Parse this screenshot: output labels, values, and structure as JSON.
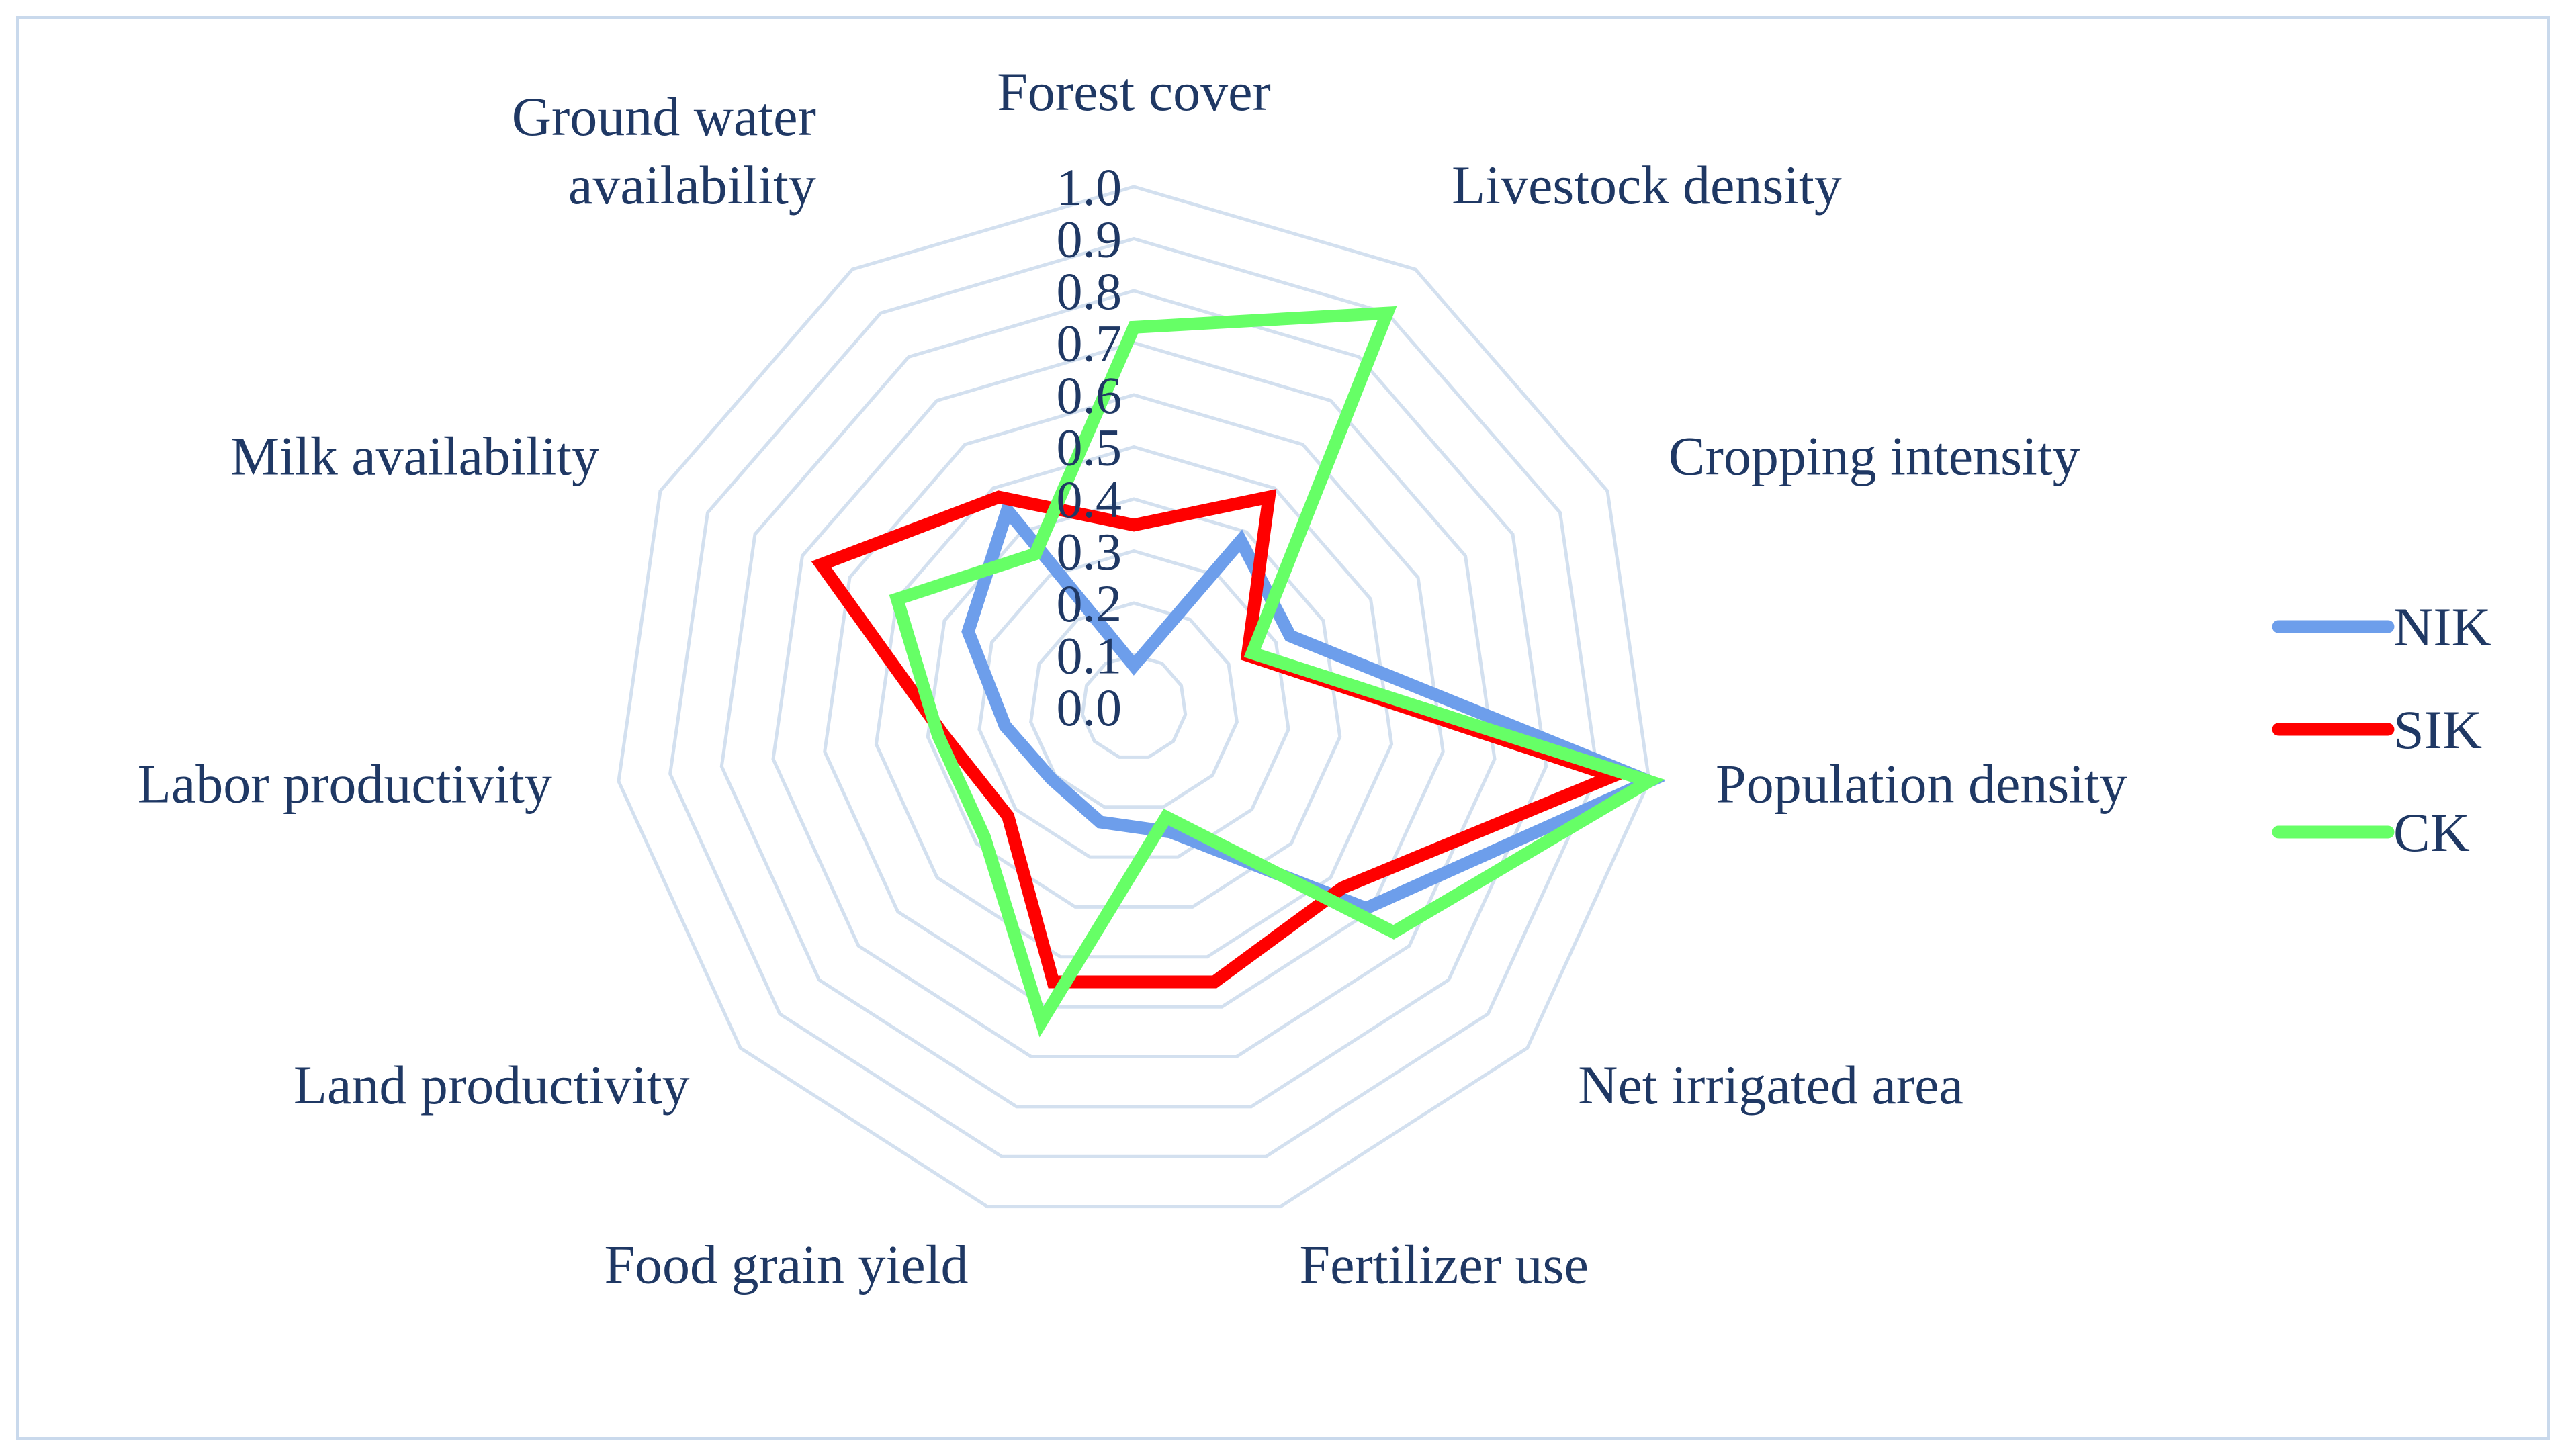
{
  "chart_data": {
    "type": "radar",
    "categories": [
      "Forest cover",
      "Livestock density",
      "Cropping intensity",
      "Population density",
      "Net irrigated area",
      "Fertilizer use",
      "Food grain yield",
      "Land productivity",
      "Labor productivity",
      "Milk availability",
      "Ground water availability"
    ],
    "category_lines": [
      [
        "Forest cover"
      ],
      [
        "Livestock density"
      ],
      [
        "Cropping intensity"
      ],
      [
        "Population density"
      ],
      [
        "Net irrigated area"
      ],
      [
        "Fertilizer use"
      ],
      [
        "Food grain yield"
      ],
      [
        "Land productivity"
      ],
      [
        "Labor productivity"
      ],
      [
        "Milk availability"
      ],
      [
        "Ground water",
        "availability"
      ]
    ],
    "ticks": [
      "0.0",
      "0.1",
      "0.2",
      "0.3",
      "0.4",
      "0.5",
      "0.6",
      "0.7",
      "0.8",
      "0.9",
      "1.0"
    ],
    "rlim": [
      0,
      1
    ],
    "grid": true,
    "legend_position": "right",
    "series": [
      {
        "name": "NIK",
        "color": "#6d9eeb",
        "values": [
          0.08,
          0.38,
          0.33,
          1.0,
          0.59,
          0.25,
          0.23,
          0.21,
          0.25,
          0.35,
          0.45
        ]
      },
      {
        "name": "SIK",
        "color": "#ff0000",
        "values": [
          0.35,
          0.48,
          0.24,
          0.93,
          0.53,
          0.55,
          0.55,
          0.32,
          0.37,
          0.66,
          0.48
        ]
      },
      {
        "name": "CK",
        "color": "#66ff66",
        "values": [
          0.73,
          0.9,
          0.25,
          1.0,
          0.66,
          0.22,
          0.63,
          0.38,
          0.38,
          0.5,
          0.35
        ]
      }
    ]
  }
}
